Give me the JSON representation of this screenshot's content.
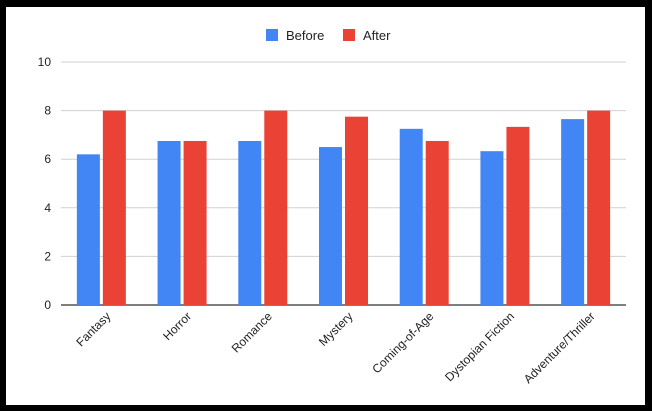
{
  "chart_data": {
    "type": "bar",
    "title": "",
    "xlabel": "",
    "ylabel": "",
    "categories": [
      "Fantasy",
      "Horror",
      "Romance",
      "Mystery",
      "Coming-of-Age",
      "Dystopian Fiction",
      "Adventure/Thriller"
    ],
    "series": [
      {
        "name": "Before",
        "color": "#4285f4",
        "values": [
          6.2,
          6.75,
          6.75,
          6.5,
          7.25,
          6.33,
          7.65
        ]
      },
      {
        "name": "After",
        "color": "#ea4335",
        "values": [
          8.0,
          6.75,
          8.0,
          7.75,
          6.75,
          7.33,
          8.0
        ]
      }
    ],
    "ylim": [
      0,
      10
    ],
    "yticks": [
      "0",
      "2",
      "4",
      "6",
      "8",
      "10"
    ],
    "grid": true,
    "legend_position": "top-center"
  }
}
